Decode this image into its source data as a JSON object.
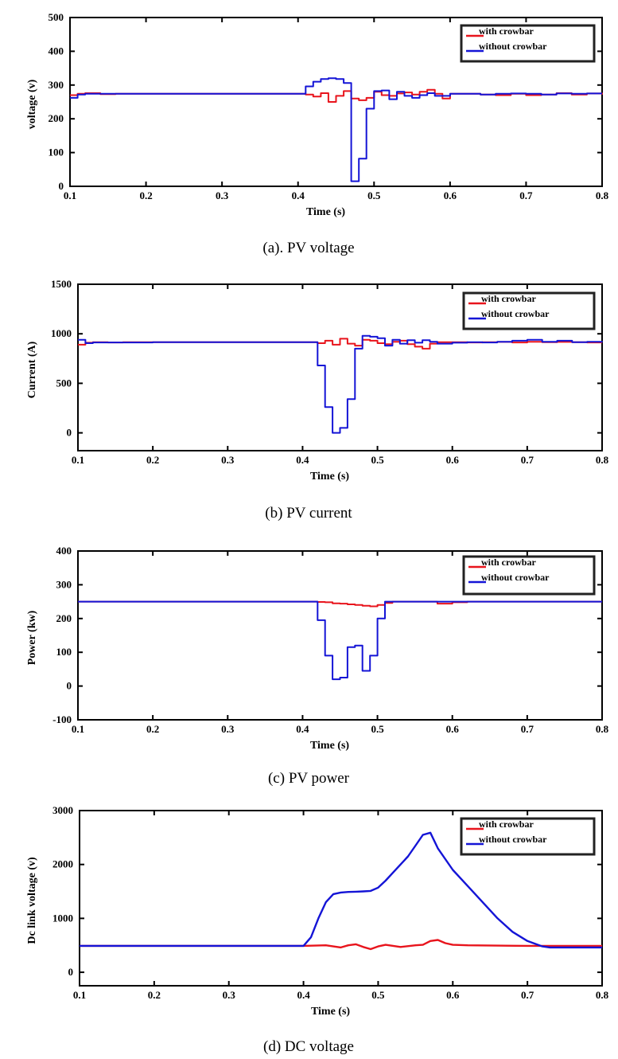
{
  "colors": {
    "with_crowbar": "#e8141c",
    "without_crowbar": "#1414d6",
    "axis": "#000000"
  },
  "chart_data": [
    {
      "type": "line",
      "caption": "(a). PV voltage",
      "xlabel": "Time (s)",
      "ylabel": "voltage (v)",
      "xlim": [
        0.1,
        0.8
      ],
      "ylim": [
        0,
        500
      ],
      "xticks": [
        0.1,
        0.2,
        0.3,
        0.4,
        0.5,
        0.6,
        0.7,
        0.8
      ],
      "yticks": [
        0,
        100,
        200,
        300,
        400,
        500
      ],
      "legend_position": "top-right",
      "series": [
        {
          "name": "with crowbar",
          "color": "with_crowbar",
          "step": true,
          "x": [
            0.1,
            0.11,
            0.12,
            0.14,
            0.16,
            0.2,
            0.3,
            0.4,
            0.41,
            0.42,
            0.43,
            0.44,
            0.45,
            0.46,
            0.47,
            0.48,
            0.49,
            0.5,
            0.51,
            0.52,
            0.53,
            0.54,
            0.55,
            0.56,
            0.57,
            0.58,
            0.59,
            0.6,
            0.62,
            0.64,
            0.66,
            0.68,
            0.7,
            0.72,
            0.74,
            0.76,
            0.78,
            0.8
          ],
          "y": [
            270,
            274,
            276,
            273,
            274,
            274,
            274,
            274,
            272,
            266,
            276,
            250,
            268,
            282,
            260,
            255,
            262,
            280,
            270,
            268,
            275,
            278,
            272,
            280,
            286,
            274,
            260,
            274,
            274,
            272,
            270,
            274,
            270,
            272,
            276,
            272,
            275,
            272
          ]
        },
        {
          "name": "without crowbar",
          "color": "without_crowbar",
          "step": true,
          "x": [
            0.1,
            0.11,
            0.12,
            0.2,
            0.3,
            0.4,
            0.41,
            0.42,
            0.43,
            0.44,
            0.45,
            0.46,
            0.47,
            0.48,
            0.49,
            0.5,
            0.51,
            0.52,
            0.53,
            0.54,
            0.55,
            0.56,
            0.57,
            0.58,
            0.6,
            0.62,
            0.64,
            0.66,
            0.68,
            0.7,
            0.72,
            0.74,
            0.76,
            0.78,
            0.8
          ],
          "y": [
            262,
            272,
            274,
            274,
            274,
            274,
            296,
            310,
            318,
            320,
            318,
            306,
            15,
            82,
            230,
            282,
            284,
            258,
            280,
            268,
            262,
            270,
            276,
            268,
            274,
            274,
            272,
            274,
            275,
            274,
            272,
            275,
            274,
            275,
            275
          ]
        }
      ]
    },
    {
      "type": "line",
      "caption": "(b) PV current",
      "xlabel": "Time (s)",
      "ylabel": "Current (A)",
      "xlim": [
        0.1,
        0.8
      ],
      "ylim": [
        -180,
        1500
      ],
      "xticks": [
        0.1,
        0.2,
        0.3,
        0.4,
        0.5,
        0.6,
        0.7,
        0.8
      ],
      "yticks": [
        0,
        500,
        1000,
        1500
      ],
      "legend_position": "top-right",
      "series": [
        {
          "name": "with crowbar",
          "color": "with_crowbar",
          "step": true,
          "x": [
            0.1,
            0.11,
            0.12,
            0.14,
            0.16,
            0.2,
            0.3,
            0.4,
            0.42,
            0.43,
            0.44,
            0.45,
            0.46,
            0.47,
            0.48,
            0.49,
            0.5,
            0.51,
            0.52,
            0.53,
            0.54,
            0.55,
            0.56,
            0.57,
            0.58,
            0.6,
            0.62,
            0.64,
            0.66,
            0.68,
            0.7,
            0.72,
            0.74,
            0.76,
            0.78,
            0.8
          ],
          "y": [
            890,
            910,
            915,
            912,
            915,
            915,
            915,
            915,
            905,
            930,
            890,
            950,
            900,
            880,
            940,
            930,
            905,
            895,
            920,
            930,
            895,
            870,
            850,
            900,
            915,
            915,
            912,
            915,
            918,
            912,
            920,
            915,
            918,
            915,
            912,
            912
          ]
        },
        {
          "name": "without crowbar",
          "color": "without_crowbar",
          "step": true,
          "x": [
            0.1,
            0.11,
            0.12,
            0.2,
            0.3,
            0.41,
            0.42,
            0.43,
            0.44,
            0.45,
            0.46,
            0.47,
            0.48,
            0.49,
            0.5,
            0.51,
            0.52,
            0.53,
            0.54,
            0.55,
            0.56,
            0.57,
            0.58,
            0.6,
            0.62,
            0.64,
            0.66,
            0.68,
            0.7,
            0.72,
            0.74,
            0.76,
            0.78,
            0.8
          ],
          "y": [
            940,
            905,
            912,
            915,
            915,
            915,
            680,
            260,
            0,
            50,
            340,
            850,
            980,
            970,
            955,
            880,
            940,
            900,
            935,
            910,
            935,
            920,
            900,
            910,
            915,
            912,
            920,
            930,
            940,
            920,
            930,
            915,
            920,
            915
          ]
        }
      ]
    },
    {
      "type": "line",
      "caption": "(c) PV power",
      "xlabel": "Time (s)",
      "ylabel": "Power (kw)",
      "xlim": [
        0.1,
        0.8
      ],
      "ylim": [
        -100,
        400
      ],
      "xticks": [
        0.1,
        0.2,
        0.3,
        0.4,
        0.5,
        0.6,
        0.7,
        0.8
      ],
      "yticks": [
        -100,
        0,
        100,
        200,
        300,
        400
      ],
      "legend_position": "top-right",
      "series": [
        {
          "name": "with crowbar",
          "color": "with_crowbar",
          "step": true,
          "x": [
            0.1,
            0.2,
            0.3,
            0.41,
            0.42,
            0.43,
            0.44,
            0.45,
            0.46,
            0.47,
            0.48,
            0.49,
            0.5,
            0.51,
            0.52,
            0.55,
            0.57,
            0.58,
            0.6,
            0.62,
            0.7,
            0.8
          ],
          "y": [
            250,
            250,
            250,
            250,
            249,
            248,
            245,
            244,
            242,
            240,
            238,
            236,
            240,
            246,
            250,
            250,
            250,
            244,
            248,
            250,
            250,
            250
          ]
        },
        {
          "name": "without crowbar",
          "color": "without_crowbar",
          "step": true,
          "x": [
            0.1,
            0.2,
            0.3,
            0.41,
            0.42,
            0.43,
            0.44,
            0.45,
            0.46,
            0.47,
            0.48,
            0.49,
            0.5,
            0.51,
            0.52,
            0.6,
            0.7,
            0.8
          ],
          "y": [
            250,
            250,
            250,
            250,
            195,
            90,
            20,
            25,
            115,
            120,
            45,
            90,
            200,
            250,
            250,
            250,
            250,
            250
          ]
        }
      ]
    },
    {
      "type": "line",
      "caption": "(d) DC voltage",
      "xlabel": "Time (s)",
      "ylabel": "Dc link voltage (v)",
      "xlim": [
        0.1,
        0.8
      ],
      "ylim": [
        -250,
        3000
      ],
      "xticks": [
        0.1,
        0.2,
        0.3,
        0.4,
        0.5,
        0.6,
        0.7,
        0.8
      ],
      "yticks": [
        0,
        1000,
        2000,
        3000
      ],
      "legend_position": "top-right",
      "series": [
        {
          "name": "with crowbar",
          "color": "with_crowbar",
          "step": false,
          "x": [
            0.1,
            0.2,
            0.3,
            0.4,
            0.43,
            0.45,
            0.46,
            0.47,
            0.48,
            0.49,
            0.5,
            0.51,
            0.53,
            0.55,
            0.56,
            0.57,
            0.58,
            0.59,
            0.6,
            0.62,
            0.7,
            0.8
          ],
          "y": [
            490,
            490,
            490,
            490,
            500,
            460,
            500,
            520,
            470,
            430,
            480,
            510,
            470,
            500,
            510,
            580,
            600,
            540,
            510,
            500,
            490,
            490
          ]
        },
        {
          "name": "without crowbar",
          "color": "without_crowbar",
          "step": false,
          "x": [
            0.1,
            0.2,
            0.3,
            0.4,
            0.41,
            0.42,
            0.43,
            0.44,
            0.45,
            0.46,
            0.47,
            0.48,
            0.49,
            0.5,
            0.51,
            0.52,
            0.53,
            0.54,
            0.55,
            0.56,
            0.57,
            0.58,
            0.6,
            0.62,
            0.64,
            0.66,
            0.68,
            0.7,
            0.72,
            0.73,
            0.75,
            0.8
          ],
          "y": [
            490,
            490,
            490,
            490,
            650,
            1000,
            1300,
            1450,
            1480,
            1490,
            1495,
            1500,
            1510,
            1570,
            1700,
            1850,
            2000,
            2150,
            2350,
            2550,
            2590,
            2300,
            1900,
            1600,
            1300,
            1000,
            750,
            580,
            480,
            460,
            460,
            460
          ]
        }
      ]
    }
  ]
}
